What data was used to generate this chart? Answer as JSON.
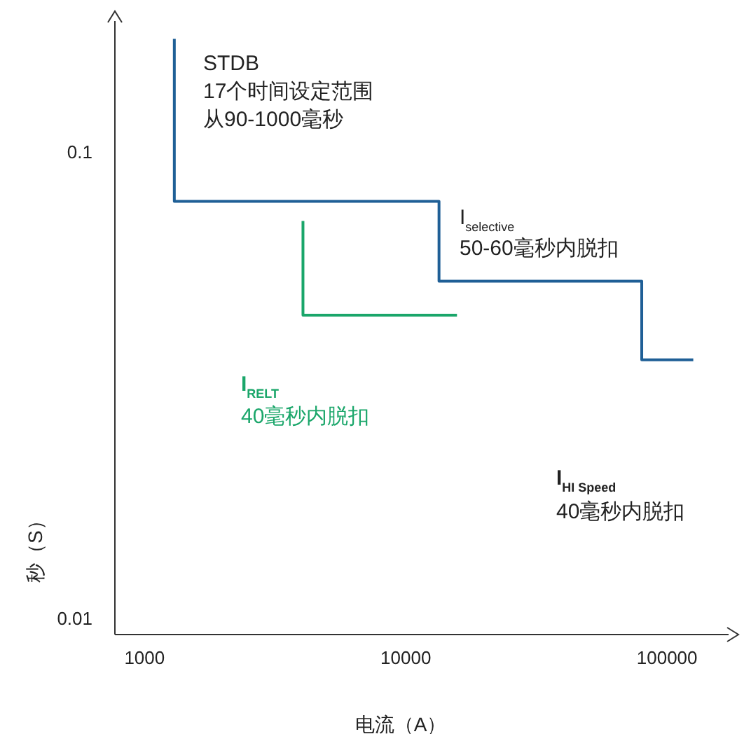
{
  "chart_data": {
    "type": "line",
    "xlabel": "电流（A）",
    "ylabel": "秒（S）",
    "log": "xy",
    "xlim": [
      770,
      172000
    ],
    "ylim": [
      0.0092,
      0.19
    ],
    "xticks": [
      1000,
      10000,
      100000
    ],
    "yticks": [
      0.01,
      0.1
    ],
    "grid": false,
    "line_style": "solid",
    "marker": "none",
    "series": [
      {
        "color": "#1f5f96",
        "x": [
          1300,
          1300,
          13400,
          13400,
          80000,
          80000,
          126000
        ],
        "values": [
          0.174,
          0.078,
          0.078,
          0.0526,
          0.0526,
          0.0357,
          0.0357
        ]
      },
      {
        "color": "#1aa66a",
        "x": [
          4040,
          4040,
          15700
        ],
        "values": [
          0.0708,
          0.0445,
          0.0445
        ]
      }
    ],
    "annotations": [
      "STDB",
      "17个时间设定范围",
      "从90-1000毫秒",
      "I$_{selective}$",
      "50-60毫秒内脱扣",
      "I$_{RELT}$",
      "40毫秒内脱扣",
      "I$_{HI Speed}$",
      "40毫秒内脱扣"
    ]
  }
}
